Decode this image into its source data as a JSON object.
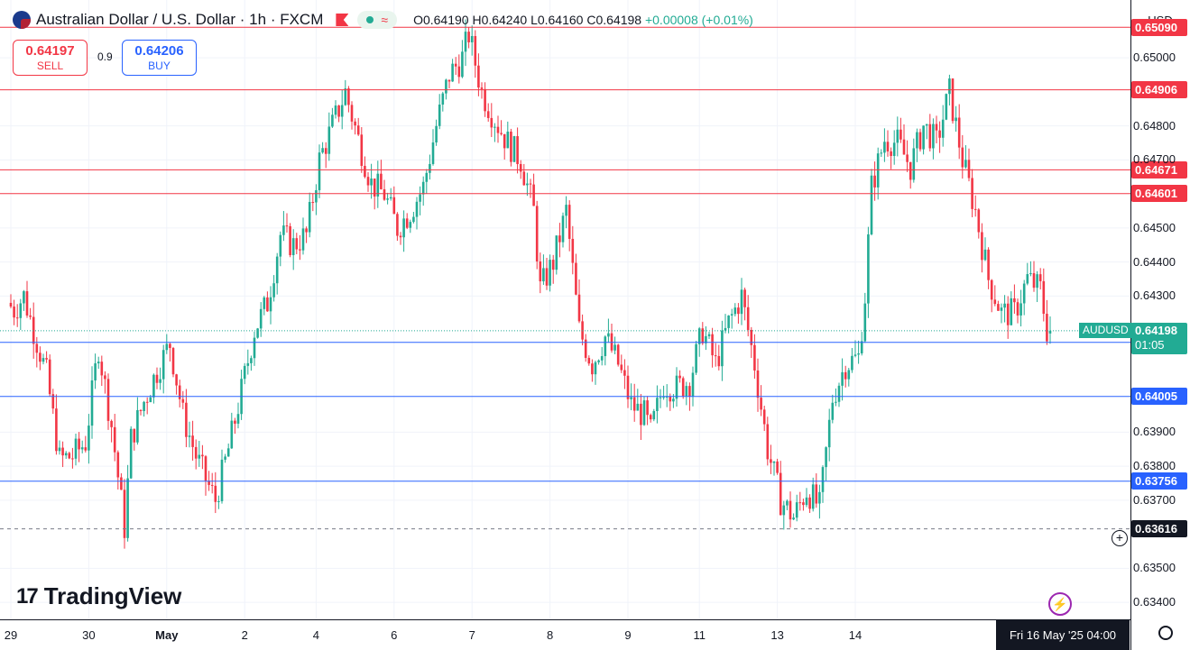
{
  "header": {
    "title": "Australian Dollar / U.S. Dollar · 1h · FXCM",
    "open": "O0.64190",
    "high": "H0.64240",
    "low": "L0.64160",
    "close": "C0.64198",
    "change": "+0.00008 (+0.01%)"
  },
  "trade": {
    "sell_price": "0.64197",
    "sell_label": "SELL",
    "buy_price": "0.64206",
    "buy_label": "BUY",
    "spread": "0.9"
  },
  "currency": "USD",
  "logo_text": "TradingView",
  "colors": {
    "up": "#22ab94",
    "down": "#f23645",
    "resistance": "#f23645",
    "support": "#2962ff"
  },
  "current": {
    "symbol": "AUDUSD",
    "price": "0.64198",
    "countdown": "01:05"
  },
  "crosshair_date": "Fri 16 May '25   04:00",
  "chart_data": {
    "type": "candlestick",
    "interval": "1h",
    "ylim": [
      0.6335,
      0.6517
    ],
    "y_ticks": [
      "0.65000",
      "0.64800",
      "0.64700",
      "0.64500",
      "0.64400",
      "0.64300",
      "0.63900",
      "0.63800",
      "0.63700",
      "0.63500",
      "0.63400"
    ],
    "x_ticks": [
      {
        "label": "29",
        "bar": 0
      },
      {
        "label": "30",
        "bar": 24
      },
      {
        "label": "May",
        "bar": 48
      },
      {
        "label": "2",
        "bar": 72
      },
      {
        "label": "4",
        "bar": 94
      },
      {
        "label": "6",
        "bar": 118
      },
      {
        "label": "7",
        "bar": 142
      },
      {
        "label": "8",
        "bar": 166
      },
      {
        "label": "9",
        "bar": 190
      },
      {
        "label": "11",
        "bar": 212
      },
      {
        "label": "13",
        "bar": 236
      },
      {
        "label": "14",
        "bar": 260
      }
    ],
    "resistance": [
      "0.65090",
      "0.64906",
      "0.64671",
      "0.64601"
    ],
    "support": [
      "0.64164",
      "0.64005",
      "0.63756"
    ],
    "crosshair_level": "0.63616",
    "waypoints": [
      [
        0,
        0.6428
      ],
      [
        2,
        0.6426
      ],
      [
        5,
        0.643
      ],
      [
        8,
        0.642
      ],
      [
        12,
        0.6407
      ],
      [
        16,
        0.6382
      ],
      [
        20,
        0.6383
      ],
      [
        24,
        0.6387
      ],
      [
        28,
        0.6415
      ],
      [
        32,
        0.6392
      ],
      [
        36,
        0.6362
      ],
      [
        38,
        0.6388
      ],
      [
        42,
        0.6399
      ],
      [
        46,
        0.6408
      ],
      [
        50,
        0.6416
      ],
      [
        54,
        0.6395
      ],
      [
        58,
        0.6383
      ],
      [
        62,
        0.6374
      ],
      [
        64,
        0.637
      ],
      [
        68,
        0.6385
      ],
      [
        72,
        0.6402
      ],
      [
        76,
        0.642
      ],
      [
        80,
        0.6428
      ],
      [
        84,
        0.6448
      ],
      [
        88,
        0.6445
      ],
      [
        92,
        0.6448
      ],
      [
        96,
        0.647
      ],
      [
        100,
        0.648
      ],
      [
        104,
        0.649
      ],
      [
        108,
        0.6476
      ],
      [
        112,
        0.6463
      ],
      [
        116,
        0.646
      ],
      [
        120,
        0.645
      ],
      [
        124,
        0.6455
      ],
      [
        128,
        0.6462
      ],
      [
        132,
        0.648
      ],
      [
        136,
        0.6495
      ],
      [
        140,
        0.65
      ],
      [
        142,
        0.6507
      ],
      [
        146,
        0.649
      ],
      [
        150,
        0.6482
      ],
      [
        154,
        0.6475
      ],
      [
        158,
        0.647
      ],
      [
        162,
        0.6455
      ],
      [
        164,
        0.6432
      ],
      [
        168,
        0.644
      ],
      [
        172,
        0.6455
      ],
      [
        176,
        0.642
      ],
      [
        180,
        0.641
      ],
      [
        184,
        0.6418
      ],
      [
        188,
        0.641
      ],
      [
        192,
        0.6398
      ],
      [
        196,
        0.6395
      ],
      [
        198,
        0.639
      ],
      [
        202,
        0.6404
      ],
      [
        206,
        0.6403
      ],
      [
        210,
        0.6405
      ],
      [
        214,
        0.642
      ],
      [
        218,
        0.641
      ],
      [
        222,
        0.6422
      ],
      [
        226,
        0.643
      ],
      [
        230,
        0.641
      ],
      [
        234,
        0.6385
      ],
      [
        238,
        0.637
      ],
      [
        242,
        0.6365
      ],
      [
        246,
        0.6373
      ],
      [
        250,
        0.6368
      ],
      [
        254,
        0.64
      ],
      [
        258,
        0.641
      ],
      [
        262,
        0.6412
      ],
      [
        264,
        0.643
      ],
      [
        266,
        0.6462
      ],
      [
        270,
        0.6476
      ],
      [
        274,
        0.6475
      ],
      [
        278,
        0.6468
      ],
      [
        282,
        0.648
      ],
      [
        286,
        0.6475
      ],
      [
        290,
        0.649
      ],
      [
        294,
        0.647
      ],
      [
        298,
        0.6455
      ],
      [
        302,
        0.6435
      ],
      [
        306,
        0.6425
      ],
      [
        310,
        0.6425
      ],
      [
        314,
        0.6435
      ],
      [
        318,
        0.6432
      ],
      [
        320,
        0.642
      ]
    ],
    "last_bar": {
      "open": 0.6419,
      "high": 0.6424,
      "low": 0.6416,
      "close": 0.64198
    }
  }
}
